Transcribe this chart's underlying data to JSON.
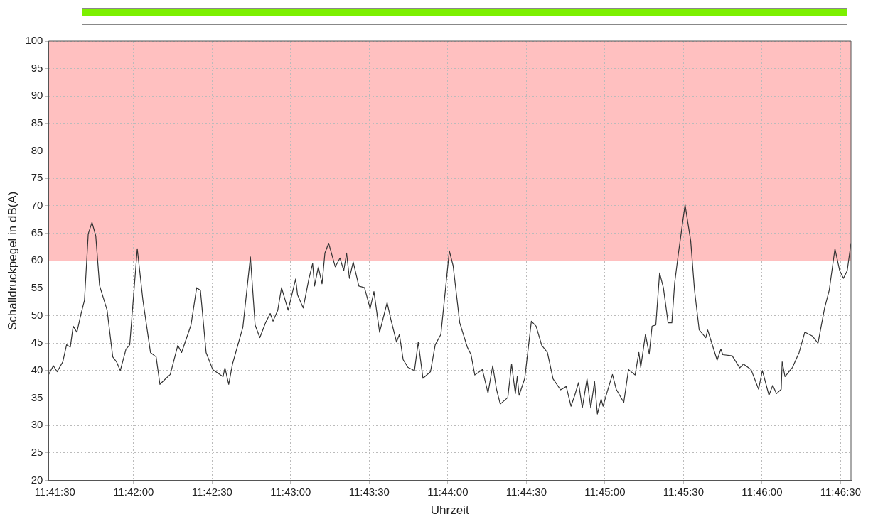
{
  "chart_data": {
    "type": "line",
    "xlabel": "Uhrzeit",
    "ylabel": "Schalldruckpegel in dB(A)",
    "xlim": [
      11.691,
      11.7761
    ],
    "ylim": [
      20,
      100
    ],
    "xticks": [
      {
        "value": 11.691667,
        "label": "11:41:30"
      },
      {
        "value": 11.7,
        "label": "11:42:00"
      },
      {
        "value": 11.708333,
        "label": "11:42:30"
      },
      {
        "value": 11.716667,
        "label": "11:43:00"
      },
      {
        "value": 11.725,
        "label": "11:43:30"
      },
      {
        "value": 11.733333,
        "label": "11:44:00"
      },
      {
        "value": 11.741667,
        "label": "11:44:30"
      },
      {
        "value": 11.75,
        "label": "11:45:00"
      },
      {
        "value": 11.758333,
        "label": "11:45:30"
      },
      {
        "value": 11.766667,
        "label": "11:46:00"
      },
      {
        "value": 11.775,
        "label": "11:46:30"
      }
    ],
    "yticks": [
      20,
      25,
      30,
      35,
      40,
      45,
      50,
      55,
      60,
      65,
      70,
      75,
      80,
      85,
      90,
      95,
      100
    ],
    "grid": true,
    "legend": false,
    "marker": "none",
    "line_style": "solid",
    "bands": [
      {
        "axis": "y",
        "from": 60,
        "to": 100,
        "label": null,
        "color": "#ffc0c0"
      }
    ],
    "series": [
      {
        "color": "#333333",
        "x": [
          11.691,
          11.6915,
          11.6919,
          11.6925,
          11.6929,
          11.6933,
          11.6936,
          11.694,
          11.6944,
          11.6948,
          11.6952,
          11.6956,
          11.696,
          11.6964,
          11.6972,
          11.6978,
          11.6982,
          11.6986,
          11.6992,
          11.6996,
          11.7004,
          11.701,
          11.7018,
          11.7024,
          11.7028,
          11.7034,
          11.7039,
          11.7047,
          11.7051,
          11.7061,
          11.7067,
          11.7071,
          11.7077,
          11.7084,
          11.7089,
          11.7095,
          11.7097,
          11.7101,
          11.7105,
          11.7116,
          11.7124,
          11.7129,
          11.7134,
          11.714,
          11.7145,
          11.7148,
          11.7153,
          11.7157,
          11.7164,
          11.7172,
          11.7174,
          11.718,
          11.7186,
          11.719,
          11.7192,
          11.7196,
          11.72,
          11.7203,
          11.7207,
          11.7214,
          11.7219,
          11.7223,
          11.7226,
          11.7229,
          11.7233,
          11.7239,
          11.7245,
          11.7251,
          11.7255,
          11.7261,
          11.7269,
          11.7273,
          11.7279,
          11.7282,
          11.7286,
          11.7291,
          11.7298,
          11.7302,
          11.7307,
          11.7315,
          11.732,
          11.7326,
          11.7335,
          11.7339,
          11.7346,
          11.7354,
          11.7358,
          11.7362,
          11.737,
          11.7376,
          11.7381,
          11.7385,
          11.7389,
          11.7397,
          11.7401,
          11.7405,
          11.7407,
          11.7409,
          11.7415,
          11.7422,
          11.7427,
          11.7433,
          11.7439,
          11.7445,
          11.7453,
          11.7459,
          11.7464,
          11.7468,
          11.7472,
          11.7476,
          11.7481,
          11.7485,
          11.7489,
          11.7492,
          11.7496,
          11.7498,
          11.7502,
          11.7508,
          11.7512,
          11.752,
          11.7525,
          11.7532,
          11.7536,
          11.7538,
          11.7543,
          11.7547,
          11.755,
          11.7554,
          11.7558,
          11.7562,
          11.7567,
          11.7571,
          11.7574,
          11.7578,
          11.7585,
          11.7591,
          11.7595,
          11.76,
          11.7607,
          11.7609,
          11.7619,
          11.7623,
          11.7625,
          11.7635,
          11.7643,
          11.7647,
          11.7655,
          11.7663,
          11.7667,
          11.7674,
          11.7678,
          11.7682,
          11.7687,
          11.7688,
          11.7691,
          11.7699,
          11.7706,
          11.7712,
          11.772,
          11.7726,
          11.7733,
          11.7738,
          11.7744,
          11.7749,
          11.7753,
          11.7757,
          11.7761
        ],
        "values": [
          39.3,
          40.9,
          39.8,
          41.6,
          44.7,
          44.3,
          48.1,
          47,
          50.1,
          52.8,
          64.9,
          67,
          64.5,
          55.5,
          51,
          42.5,
          41.6,
          40,
          43.9,
          44.7,
          62.2,
          52.8,
          43.3,
          42.5,
          37.5,
          38.5,
          39.3,
          44.6,
          43.3,
          48.3,
          55.1,
          54.6,
          43.3,
          40.2,
          39.6,
          38.9,
          40.5,
          37.5,
          41.2,
          47.9,
          60.7,
          48.3,
          46,
          48.7,
          50.4,
          49,
          51,
          55.1,
          51,
          56.7,
          53.8,
          51.4,
          56.7,
          59.5,
          55.4,
          58.9,
          55.8,
          61.4,
          63.2,
          58.9,
          60.5,
          58.2,
          61.4,
          56.8,
          59.8,
          55.4,
          55.1,
          51.3,
          54.4,
          47,
          52.4,
          49.3,
          45.2,
          46.6,
          42,
          40.6,
          40,
          45.2,
          38.6,
          39.8,
          44.7,
          46.6,
          61.8,
          59.1,
          48.7,
          44.3,
          42.9,
          39.2,
          40.2,
          35.9,
          40.9,
          36.6,
          33.9,
          35.1,
          41.2,
          35.8,
          38.9,
          35.5,
          38.6,
          49,
          48.1,
          44.6,
          43.3,
          38.5,
          36.5,
          37.1,
          33.5,
          35.5,
          37.8,
          33.2,
          38.5,
          33.2,
          38,
          32.1,
          34.8,
          33.5,
          35.9,
          39.3,
          36.6,
          34.2,
          40.2,
          39.2,
          43.3,
          40.6,
          46.6,
          43,
          48.1,
          48.3,
          57.8,
          55.1,
          48.7,
          48.7,
          56,
          61.4,
          70.2,
          63.6,
          54.7,
          47.4,
          46,
          47.4,
          41.9,
          43.9,
          42.9,
          42.7,
          40.5,
          41.2,
          40.2,
          36.6,
          40,
          35.5,
          37.3,
          35.8,
          36.6,
          41.6,
          38.9,
          40.6,
          43.3,
          47,
          46.3,
          45,
          51.4,
          54.7,
          62.2,
          58.2,
          56.8,
          58.2,
          63.2
        ]
      }
    ]
  }
}
